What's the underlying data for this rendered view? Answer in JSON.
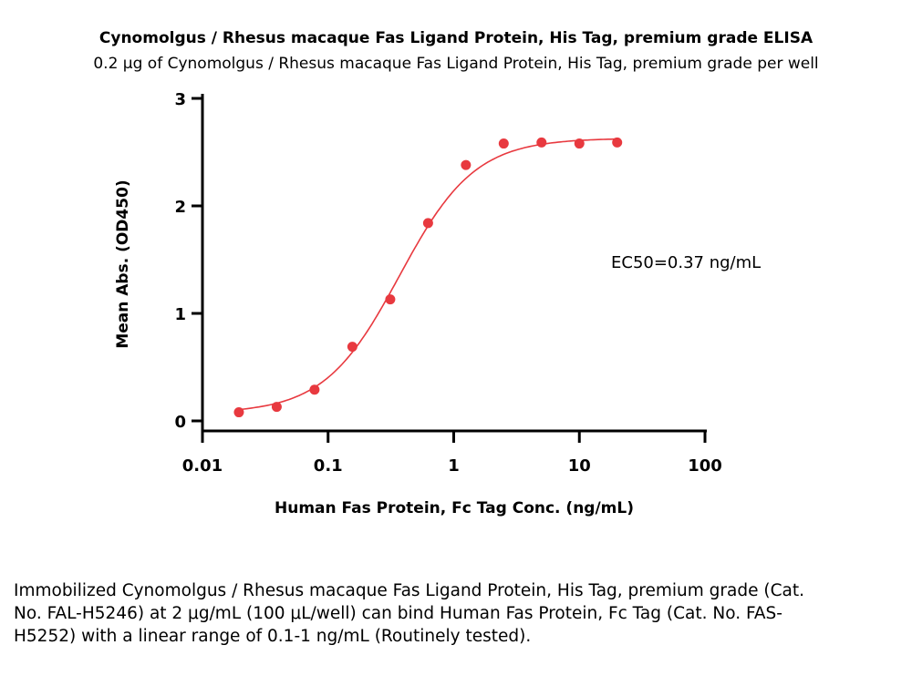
{
  "title": "Cynomolgus / Rhesus macaque Fas Ligand Protein, His Tag, premium grade ELISA",
  "subtitle": "0.2 μg of Cynomolgus / Rhesus macaque Fas Ligand Protein, His Tag, premium grade per well",
  "caption": "Immobilized Cynomolgus / Rhesus macaque Fas Ligand Protein, His Tag, premium grade (Cat. No. FAL-H5246) at 2 μg/mL (100 μL/well) can bind Human Fas Protein, Fc Tag (Cat. No. FAS-H5252) with a linear range of 0.1-1 ng/mL (Routinely tested).",
  "chart_data": {
    "type": "scatter",
    "title": "Cynomolgus / Rhesus macaque Fas Ligand Protein, His Tag, premium grade ELISA",
    "xlabel": "Human Fas Protein, Fc Tag Conc. (ng/mL)",
    "ylabel": "Mean Abs. (OD450)",
    "xscale": "log",
    "xlim": [
      0.01,
      100
    ],
    "ylim": [
      0,
      3
    ],
    "xticks": [
      "0.01",
      "0.1",
      "1",
      "10",
      "100"
    ],
    "xtick_values": [
      0.01,
      0.1,
      1,
      10,
      100
    ],
    "yticks": [
      "0",
      "1",
      "2",
      "3"
    ],
    "ytick_values": [
      0,
      1,
      2,
      3
    ],
    "x": [
      0.0195,
      0.039,
      0.078,
      0.156,
      0.3125,
      0.625,
      1.25,
      2.5,
      5,
      10,
      20
    ],
    "y": [
      0.08,
      0.13,
      0.29,
      0.69,
      1.13,
      1.84,
      2.38,
      2.58,
      2.59,
      2.58,
      2.59
    ],
    "fit": {
      "bottom": 0.07,
      "top": 2.63,
      "ec50": 0.37,
      "hill": 1.45
    },
    "annotation": "EC50=0.37 ng/mL",
    "color": "#e8393f",
    "grid": false
  }
}
